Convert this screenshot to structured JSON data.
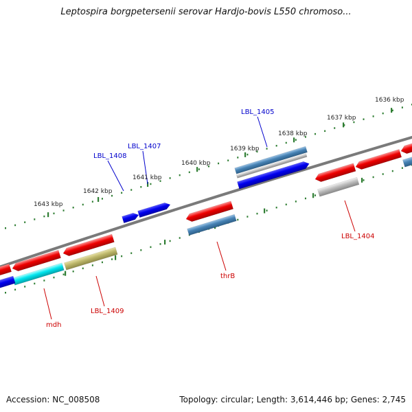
{
  "title": "Leptospira borgpetersenii serovar Hardjo-bovis L550 chromoso...",
  "footer": {
    "accession": "Accession: NC_008508",
    "summary": "Topology: circular; Length: 3,614,446 bp; Genes: 2,745"
  },
  "scale_labels": [
    "1636 kbp",
    "1637 kbp",
    "1638 kbp",
    "1639 kbp",
    "1640 kbp",
    "1641 kbp",
    "1642 kbp",
    "1643 kbp"
  ],
  "gene_labels": [
    {
      "text": "LBL_1405",
      "strand": "forward"
    },
    {
      "text": "LBL_1407",
      "strand": "forward"
    },
    {
      "text": "LBL_1408",
      "strand": "forward"
    },
    {
      "text": "LBL_1404",
      "strand": "reverse"
    },
    {
      "text": "thrB",
      "strand": "reverse"
    },
    {
      "text": "LBL_1409",
      "strand": "reverse"
    },
    {
      "text": "mdh",
      "strand": "reverse"
    }
  ],
  "colors": {
    "backbone": "#7a7a7a",
    "forward_label": "#0000cc",
    "reverse_label": "#cc0000",
    "tick": "#2e7d32",
    "cds_red": "#ee0000",
    "cds_blue": "#0000ee",
    "cds_steel": "#4682b4",
    "cds_gray": "#aaaaaa",
    "cds_cyan": "#00e5ee",
    "cds_khaki": "#bdb76b"
  }
}
